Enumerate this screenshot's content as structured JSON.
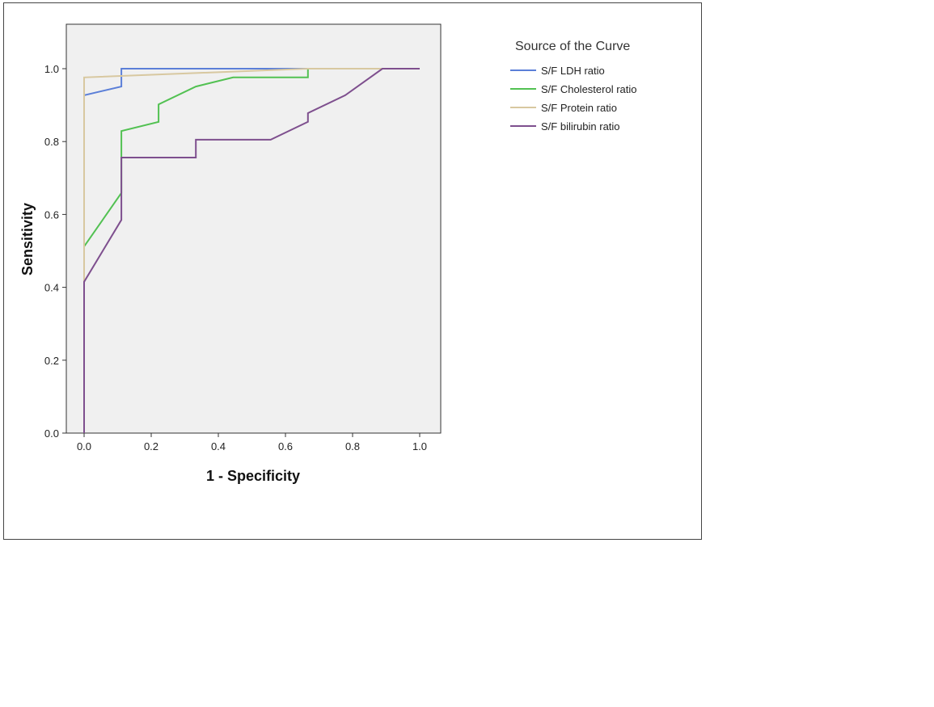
{
  "chart_data": {
    "type": "line",
    "title": "",
    "xlabel": "1 - Specificity",
    "ylabel": "Sensitivity",
    "xlim": [
      0,
      1
    ],
    "ylim": [
      0,
      1
    ],
    "xticks": [
      "0.0",
      "0.2",
      "0.4",
      "0.6",
      "0.8",
      "1.0"
    ],
    "yticks": [
      "0.0",
      "0.2",
      "0.4",
      "0.6",
      "0.8",
      "1.0"
    ],
    "grid": false,
    "legend_title": "Source of the Curve",
    "legend_position": "right",
    "series": [
      {
        "name": "S/F LDH ratio",
        "color": "#5b7fd8",
        "x": [
          0,
          0,
          0.111,
          0.111,
          1
        ],
        "y": [
          0,
          0.927,
          0.951,
          1,
          1
        ]
      },
      {
        "name": "S/F Cholesterol ratio",
        "color": "#52c152",
        "x": [
          0,
          0,
          0.111,
          0.111,
          0.222,
          0.222,
          0.333,
          0.444,
          0.667,
          0.667,
          1
        ],
        "y": [
          0,
          0.512,
          0.659,
          0.829,
          0.854,
          0.902,
          0.951,
          0.976,
          0.976,
          1,
          1
        ]
      },
      {
        "name": "S/F Protein ratio",
        "color": "#d8c8a0",
        "x": [
          0,
          0,
          0.667,
          1
        ],
        "y": [
          0,
          0.976,
          1,
          1
        ]
      },
      {
        "name": "S/F bilirubin ratio",
        "color": "#7e4f8e",
        "x": [
          0,
          0,
          0.111,
          0.111,
          0.333,
          0.333,
          0.556,
          0.667,
          0.667,
          0.778,
          0.889,
          1
        ],
        "y": [
          0,
          0.415,
          0.585,
          0.756,
          0.756,
          0.805,
          0.805,
          0.854,
          0.878,
          0.927,
          1,
          1
        ]
      }
    ]
  }
}
